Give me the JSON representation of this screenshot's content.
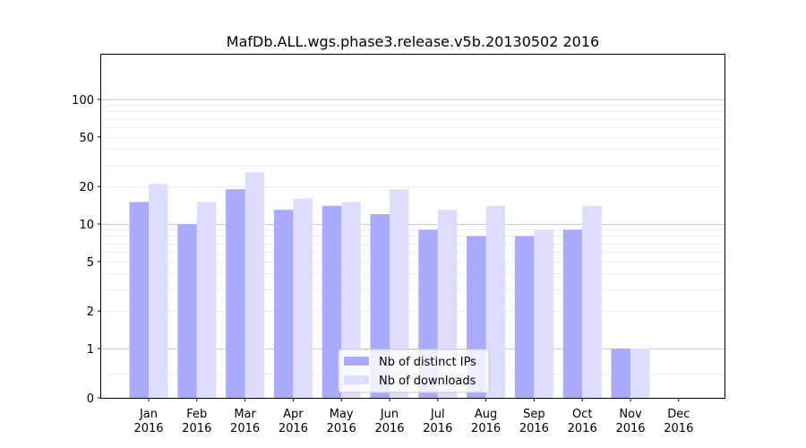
{
  "chart_data": {
    "type": "bar",
    "title": "MafDb.ALL.wgs.phase3.release.v5b.20130502 2016",
    "xlabel": "",
    "ylabel": "",
    "categories": [
      "Jan\n2016",
      "Feb\n2016",
      "Mar\n2016",
      "Apr\n2016",
      "May\n2016",
      "Jun\n2016",
      "Jul\n2016",
      "Aug\n2016",
      "Sep\n2016",
      "Oct\n2016",
      "Nov\n2016",
      "Dec\n2016"
    ],
    "series": [
      {
        "name": "Nb of distinct IPs",
        "color": "#aaaaff",
        "values": [
          15,
          10,
          19,
          13,
          14,
          12,
          9,
          8,
          8,
          9,
          1,
          0
        ]
      },
      {
        "name": "Nb of downloads",
        "color": "#ddddff",
        "values": [
          21,
          15,
          26,
          16,
          15,
          19,
          13,
          14,
          9,
          14,
          1,
          0
        ]
      }
    ],
    "yscale": "symlog",
    "ylim": [
      0,
      120
    ],
    "yticks": [
      0,
      1,
      2,
      5,
      10,
      20,
      50,
      100
    ],
    "ytick_labels": [
      "0",
      "1",
      "2",
      "5",
      "10",
      "20",
      "50",
      "100"
    ],
    "grid": true,
    "legend_position": "bottom-center"
  }
}
